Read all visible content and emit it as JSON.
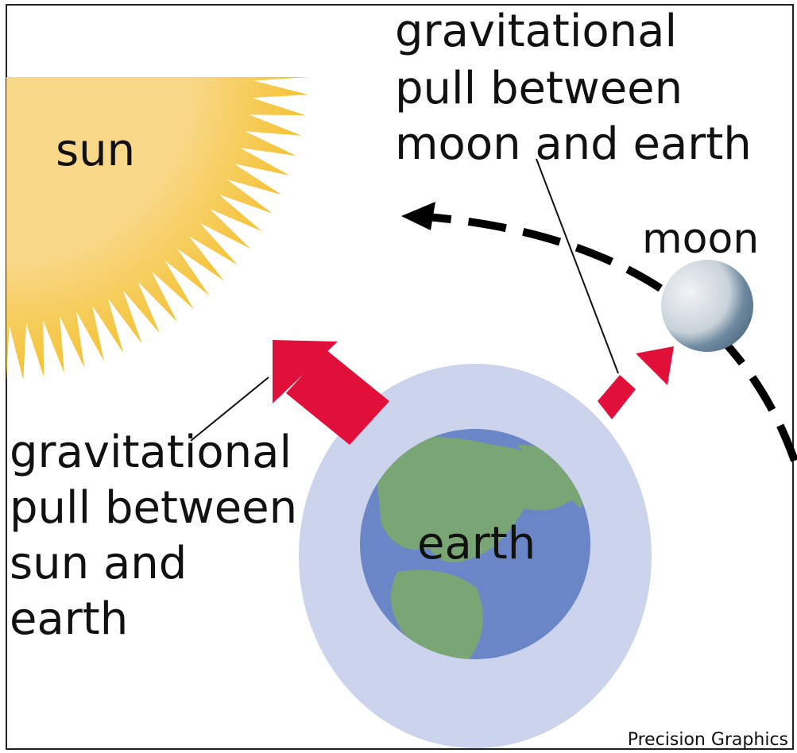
{
  "labels": {
    "sun": "sun",
    "moon": "moon",
    "earth": "earth"
  },
  "captions": {
    "moon_earth": [
      "gravitational",
      "pull between",
      "moon and earth"
    ],
    "sun_earth": [
      "gravitational",
      "pull between",
      "sun and",
      "earth"
    ]
  },
  "credit": "Precision Graphics"
}
